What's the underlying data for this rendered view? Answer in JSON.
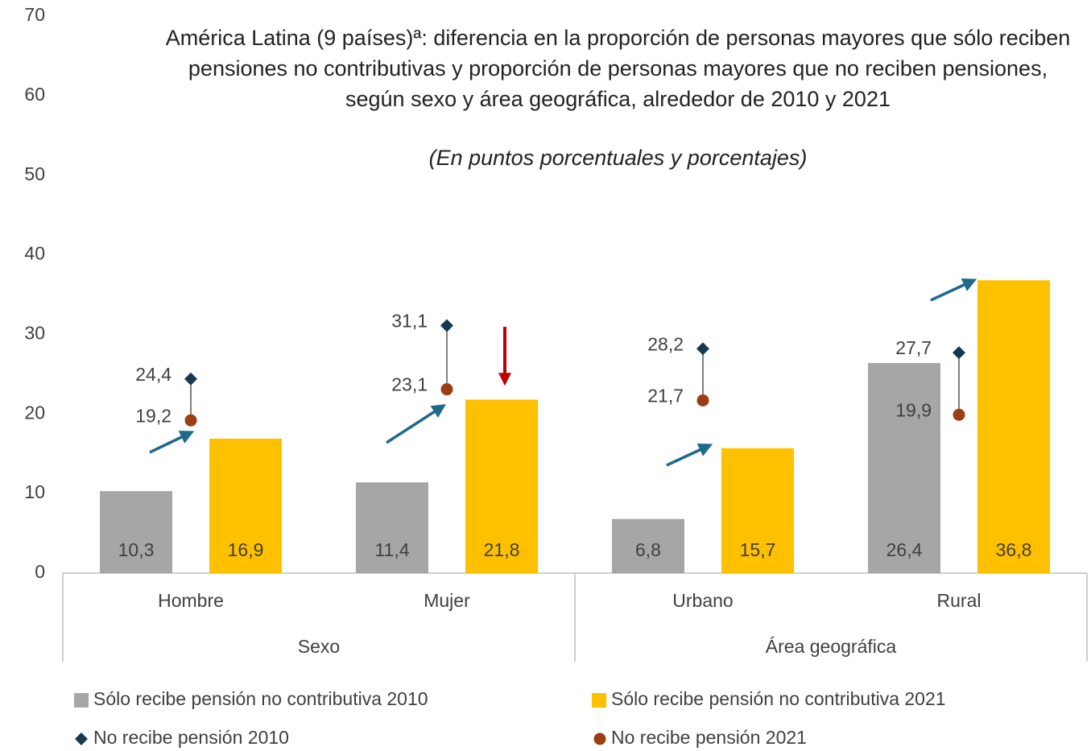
{
  "chart_data": {
    "type": "bar",
    "title": "América Latina (9 países)ª: diferencia en la proporción de personas mayores que sólo reciben pensiones no contributivas y proporción de personas mayores que no reciben pensiones, según sexo y área geográfica, alrededor de 2010 y 2021",
    "subtitle": "(En puntos porcentuales y porcentajes)",
    "categories": [
      "Hombre",
      "Mujer",
      "Urbano",
      "Rural"
    ],
    "category_groups": [
      "Sexo",
      "Sexo",
      "Área geográfica",
      "Área geográfica"
    ],
    "ylim": [
      0,
      70
    ],
    "yticks": [
      0,
      10,
      20,
      30,
      40,
      50,
      60,
      70
    ],
    "series": [
      {
        "name": "Sólo recibe pensión no contributiva 2010",
        "color": "#a6a6a6",
        "marker": "bar",
        "values": [
          10.3,
          11.4,
          6.8,
          26.4
        ],
        "value_labels": [
          "10,3",
          "11,4",
          "6,8",
          "26,4"
        ]
      },
      {
        "name": "Sólo recibe pensión no contributiva 2021",
        "color": "#ffc000",
        "marker": "bar",
        "values": [
          16.9,
          21.8,
          15.7,
          36.8
        ],
        "value_labels": [
          "16,9",
          "21,8",
          "15,7",
          "36,8"
        ]
      },
      {
        "name": "No recibe pensión 2010",
        "color": "#16394f",
        "label_color": "#2f4a80",
        "marker": "diamond",
        "values": [
          24.4,
          31.1,
          28.2,
          27.7
        ],
        "value_labels": [
          "24,4",
          "31,1",
          "28,2",
          "27,7"
        ]
      },
      {
        "name": "No recibe pensión 2021",
        "color": "#9c3e14",
        "label_color": "#b0581c",
        "marker": "circle",
        "values": [
          19.2,
          23.1,
          21.7,
          19.9
        ],
        "value_labels": [
          "19,2",
          "23,1",
          "21,7",
          "19,9"
        ]
      }
    ]
  }
}
